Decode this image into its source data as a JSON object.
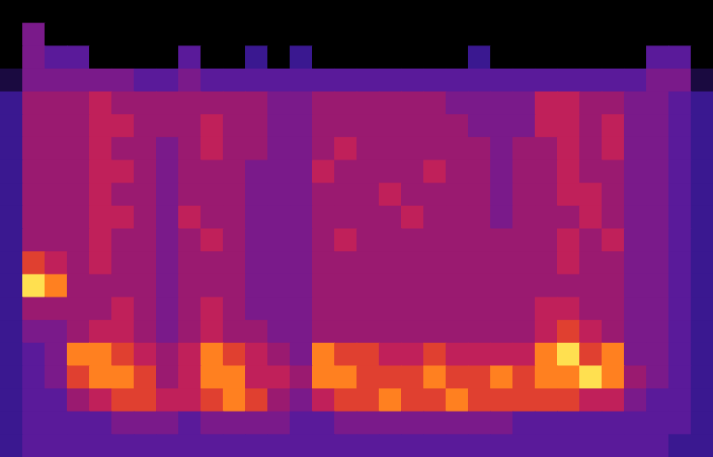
{
  "chart_data": {
    "type": "heatmap",
    "tick_labels": false,
    "xlim": [
      0,
      32
    ],
    "ylim": [
      0,
      20
    ],
    "cells": [
      [
        0,
        0,
        0,
        0,
        0,
        0,
        0,
        0,
        0,
        0,
        0,
        0,
        0,
        0,
        0,
        0,
        0,
        0,
        0,
        0,
        0,
        0,
        0,
        0,
        0,
        0,
        0,
        0,
        0,
        0,
        0,
        0
      ],
      [
        0,
        4,
        0,
        0,
        0,
        0,
        0,
        0,
        0,
        0,
        0,
        0,
        0,
        0,
        0,
        0,
        0,
        0,
        0,
        0,
        0,
        0,
        0,
        0,
        0,
        0,
        0,
        0,
        0,
        0,
        0,
        0
      ],
      [
        0,
        4,
        3,
        3,
        0,
        0,
        0,
        0,
        3,
        0,
        0,
        2,
        0,
        2,
        0,
        0,
        0,
        0,
        0,
        0,
        0,
        2,
        0,
        0,
        0,
        0,
        0,
        0,
        0,
        3,
        3,
        0
      ],
      [
        1,
        4,
        4,
        4,
        4,
        4,
        3,
        3,
        4,
        3,
        3,
        3,
        3,
        3,
        3,
        3,
        3,
        3,
        3,
        3,
        3,
        3,
        3,
        3,
        3,
        3,
        3,
        3,
        3,
        4,
        4,
        1
      ],
      [
        2,
        5,
        5,
        5,
        6,
        5,
        5,
        5,
        5,
        5,
        5,
        5,
        4,
        4,
        5,
        5,
        5,
        5,
        5,
        5,
        4,
        4,
        4,
        4,
        6,
        6,
        5,
        5,
        4,
        4,
        3,
        2
      ],
      [
        2,
        5,
        5,
        5,
        6,
        6,
        5,
        5,
        5,
        6,
        5,
        5,
        4,
        4,
        5,
        5,
        5,
        5,
        5,
        5,
        5,
        4,
        4,
        4,
        6,
        6,
        5,
        6,
        4,
        4,
        3,
        2
      ],
      [
        2,
        5,
        5,
        5,
        6,
        5,
        5,
        4,
        5,
        6,
        5,
        5,
        4,
        4,
        5,
        6,
        5,
        5,
        5,
        5,
        5,
        5,
        4,
        5,
        5,
        6,
        5,
        6,
        4,
        4,
        3,
        2
      ],
      [
        2,
        5,
        5,
        5,
        6,
        6,
        5,
        4,
        5,
        5,
        5,
        4,
        4,
        4,
        6,
        5,
        5,
        5,
        5,
        6,
        5,
        5,
        4,
        5,
        5,
        6,
        5,
        5,
        4,
        4,
        3,
        2
      ],
      [
        2,
        5,
        5,
        5,
        6,
        5,
        5,
        4,
        5,
        5,
        5,
        4,
        4,
        4,
        5,
        5,
        5,
        6,
        5,
        5,
        5,
        5,
        4,
        5,
        5,
        6,
        6,
        5,
        4,
        4,
        3,
        2
      ],
      [
        2,
        5,
        5,
        5,
        6,
        6,
        5,
        4,
        6,
        5,
        5,
        4,
        4,
        4,
        5,
        5,
        5,
        5,
        6,
        5,
        5,
        5,
        4,
        5,
        5,
        5,
        6,
        5,
        4,
        4,
        3,
        2
      ],
      [
        2,
        5,
        5,
        5,
        6,
        5,
        5,
        4,
        5,
        6,
        5,
        4,
        4,
        4,
        5,
        6,
        5,
        5,
        5,
        5,
        5,
        5,
        5,
        5,
        5,
        6,
        5,
        6,
        4,
        4,
        3,
        2
      ],
      [
        2,
        7,
        6,
        5,
        6,
        5,
        5,
        4,
        5,
        5,
        5,
        4,
        4,
        4,
        5,
        5,
        5,
        5,
        5,
        5,
        5,
        5,
        5,
        5,
        5,
        6,
        5,
        5,
        4,
        4,
        3,
        2
      ],
      [
        2,
        9,
        8,
        5,
        5,
        5,
        5,
        4,
        5,
        5,
        5,
        4,
        4,
        4,
        5,
        5,
        5,
        5,
        5,
        5,
        5,
        5,
        5,
        5,
        5,
        5,
        5,
        5,
        4,
        4,
        3,
        2
      ],
      [
        2,
        5,
        5,
        5,
        5,
        6,
        5,
        4,
        5,
        6,
        5,
        4,
        4,
        4,
        5,
        5,
        5,
        5,
        5,
        5,
        5,
        5,
        5,
        5,
        6,
        6,
        5,
        5,
        4,
        4,
        3,
        2
      ],
      [
        2,
        4,
        4,
        5,
        6,
        6,
        5,
        4,
        5,
        6,
        5,
        5,
        4,
        4,
        5,
        5,
        5,
        5,
        5,
        5,
        5,
        5,
        5,
        5,
        6,
        7,
        6,
        5,
        4,
        4,
        3,
        2
      ],
      [
        2,
        3,
        4,
        8,
        8,
        7,
        6,
        5,
        6,
        8,
        7,
        6,
        5,
        4,
        8,
        7,
        7,
        6,
        6,
        7,
        6,
        6,
        6,
        6,
        8,
        9,
        7,
        8,
        4,
        4,
        3,
        2
      ],
      [
        2,
        3,
        4,
        7,
        8,
        8,
        7,
        5,
        6,
        8,
        8,
        6,
        6,
        5,
        8,
        8,
        7,
        7,
        7,
        8,
        7,
        7,
        8,
        7,
        8,
        8,
        9,
        8,
        5,
        4,
        3,
        2
      ],
      [
        2,
        3,
        3,
        5,
        6,
        7,
        7,
        6,
        6,
        7,
        8,
        7,
        5,
        4,
        6,
        7,
        7,
        8,
        7,
        7,
        8,
        7,
        7,
        7,
        7,
        7,
        6,
        6,
        4,
        3,
        3,
        2
      ],
      [
        2,
        3,
        3,
        3,
        3,
        4,
        4,
        4,
        3,
        4,
        4,
        4,
        4,
        3,
        3,
        4,
        4,
        4,
        4,
        4,
        4,
        4,
        4,
        3,
        3,
        3,
        3,
        3,
        3,
        3,
        3,
        2
      ],
      [
        2,
        3,
        3,
        3,
        3,
        3,
        3,
        3,
        3,
        3,
        3,
        3,
        3,
        3,
        3,
        3,
        3,
        3,
        3,
        3,
        3,
        3,
        3,
        3,
        3,
        3,
        3,
        3,
        3,
        3,
        2,
        2
      ]
    ]
  }
}
